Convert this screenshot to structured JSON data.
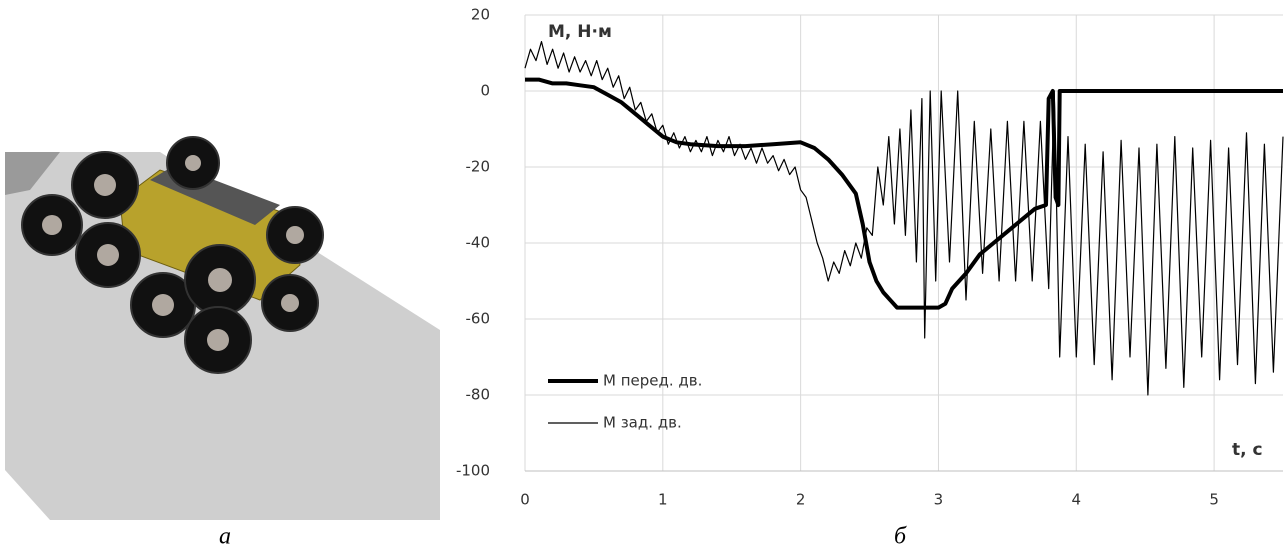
{
  "captions": [
    "а",
    "б"
  ],
  "chart_data": {
    "type": "line",
    "y_label": "М, Н·м",
    "x_label": "t, с",
    "xlim": [
      0,
      5.5
    ],
    "ylim": [
      -100,
      20
    ],
    "xticks": [
      0,
      1,
      2,
      3,
      4,
      5
    ],
    "yticks": [
      20,
      0,
      -20,
      -40,
      -60,
      -80,
      -100
    ],
    "grid": true,
    "legend": "lower left",
    "series": [
      {
        "name": "М перед. дв.",
        "color": "#000000",
        "width": 4,
        "x": [
          0,
          0.1,
          0.2,
          0.3,
          0.4,
          0.5,
          0.6,
          0.7,
          0.8,
          0.9,
          1.0,
          1.1,
          1.2,
          1.4,
          1.6,
          1.8,
          2.0,
          2.1,
          2.2,
          2.3,
          2.4,
          2.45,
          2.5,
          2.55,
          2.6,
          2.7,
          2.8,
          2.9,
          3.0,
          3.05,
          3.1,
          3.2,
          3.3,
          3.4,
          3.5,
          3.6,
          3.7,
          3.78,
          3.8,
          3.83,
          3.85,
          3.87,
          3.88,
          3.9,
          4.5,
          5.5
        ],
        "values": [
          3,
          3,
          2,
          2,
          1.5,
          1,
          -1,
          -3,
          -6,
          -9,
          -12,
          -13.5,
          -14,
          -14.5,
          -14.5,
          -14,
          -13.5,
          -15,
          -18,
          -22,
          -27,
          -35,
          -45,
          -50,
          -53,
          -57,
          -57,
          -57,
          -57,
          -56,
          -52,
          -48,
          -43,
          -40,
          -37,
          -34,
          -31,
          -30,
          -2,
          0,
          -28,
          -30,
          0,
          0,
          0,
          0
        ]
      },
      {
        "name": "М зад. дв.",
        "color": "#000000",
        "width": 1.2,
        "x": [
          0,
          0.04,
          0.08,
          0.12,
          0.16,
          0.2,
          0.24,
          0.28,
          0.32,
          0.36,
          0.4,
          0.44,
          0.48,
          0.52,
          0.56,
          0.6,
          0.64,
          0.68,
          0.72,
          0.76,
          0.8,
          0.84,
          0.88,
          0.92,
          0.96,
          1.0,
          1.04,
          1.08,
          1.12,
          1.16,
          1.2,
          1.24,
          1.28,
          1.32,
          1.36,
          1.4,
          1.44,
          1.48,
          1.52,
          1.56,
          1.6,
          1.64,
          1.68,
          1.72,
          1.76,
          1.8,
          1.84,
          1.88,
          1.92,
          1.96,
          2.0,
          2.04,
          2.08,
          2.12,
          2.16,
          2.2,
          2.24,
          2.28,
          2.32,
          2.36,
          2.4,
          2.44,
          2.48,
          2.52,
          2.56,
          2.6,
          2.64,
          2.68,
          2.72,
          2.76,
          2.8,
          2.84,
          2.88,
          2.9,
          2.94,
          2.98,
          3.02,
          3.08,
          3.14,
          3.2,
          3.26,
          3.32,
          3.38,
          3.44,
          3.5,
          3.56,
          3.62,
          3.68,
          3.74,
          3.8,
          3.84,
          3.88,
          3.94,
          4.0,
          4.065,
          4.13,
          4.195,
          4.26,
          4.325,
          4.39,
          4.455,
          4.52,
          4.585,
          4.65,
          4.715,
          4.78,
          4.845,
          4.91,
          4.975,
          5.04,
          5.105,
          5.17,
          5.235,
          5.3,
          5.365,
          5.43,
          5.5
        ],
        "values": [
          6,
          11,
          8,
          13,
          7,
          11,
          6,
          10,
          5,
          9,
          5,
          8,
          4,
          8,
          3,
          6,
          1,
          4,
          -2,
          1,
          -5,
          -3,
          -8,
          -6,
          -11,
          -9,
          -14,
          -11,
          -15,
          -12,
          -16,
          -13,
          -16,
          -12,
          -17,
          -13,
          -16,
          -12,
          -17,
          -14,
          -18,
          -15,
          -19,
          -15,
          -19,
          -17,
          -21,
          -18,
          -22,
          -20,
          -26,
          -28,
          -34,
          -40,
          -44,
          -50,
          -45,
          -48,
          -42,
          -46,
          -40,
          -44,
          -36,
          -38,
          -20,
          -30,
          -12,
          -35,
          -10,
          -38,
          -5,
          -45,
          -2,
          -65,
          0,
          -50,
          0,
          -45,
          0,
          -55,
          -8,
          -48,
          -10,
          -50,
          -8,
          -50,
          -8,
          -50,
          -8,
          -52,
          0,
          -70,
          -12,
          -70,
          -14,
          -72,
          -16,
          -76,
          -13,
          -70,
          -15,
          -80,
          -14,
          -73,
          -12,
          -78,
          -15,
          -70,
          -13,
          -76,
          -15,
          -72,
          -11,
          -77,
          -14,
          -74,
          -12
        ]
      }
    ]
  }
}
